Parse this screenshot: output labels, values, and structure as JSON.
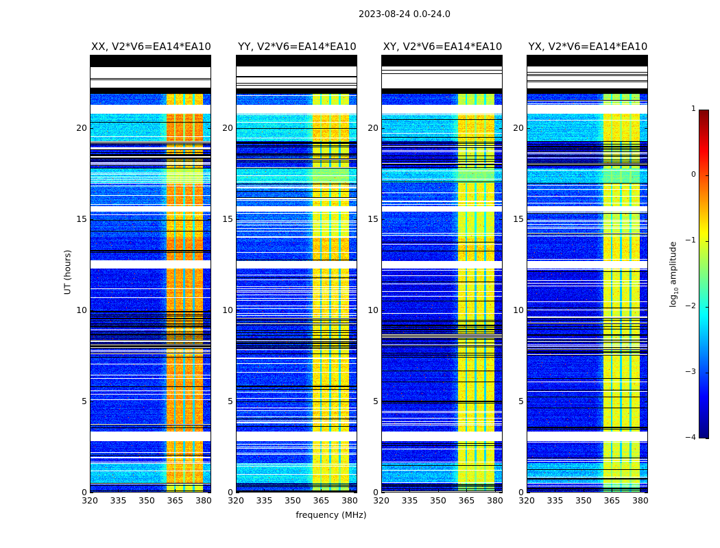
{
  "chart_data": {
    "type": "heatmap",
    "title": "2023-08-24 0.0-24.0",
    "xlabel": "frequency (MHz)",
    "ylabel": "UT (hours)",
    "xlim": [
      320,
      384
    ],
    "ylim": [
      0,
      24
    ],
    "xticks": [
      320,
      335,
      350,
      365,
      380
    ],
    "yticks": [
      0,
      5,
      10,
      15,
      20
    ],
    "panels": [
      {
        "title": "XX, V2*V6=EA14*EA10",
        "band_offset": 0.0,
        "quiet_offset": 0.0
      },
      {
        "title": "YY, V2*V6=EA14*EA10",
        "band_offset": -0.35,
        "quiet_offset": 0.1
      },
      {
        "title": "XY, V2*V6=EA14*EA10",
        "band_offset": -0.45,
        "quiet_offset": -0.1
      },
      {
        "title": "YX, V2*V6=EA14*EA10",
        "band_offset": -0.55,
        "quiet_offset": -0.1
      }
    ],
    "rfi_band_mhz": [
      360.5,
      380
    ],
    "rfi_band_gaps_mhz": [
      365,
      370,
      375
    ],
    "time_segments": [
      {
        "from": 23.4,
        "to": 24.0,
        "kind": "no-data"
      },
      {
        "from": 22.2,
        "to": 23.4,
        "kind": "flagged"
      },
      {
        "from": 21.9,
        "to": 22.2,
        "kind": "no-data"
      },
      {
        "from": 21.3,
        "to": 21.9,
        "kind": "data",
        "quiet": -3.0,
        "band": -0.7
      },
      {
        "from": 20.8,
        "to": 21.3,
        "kind": "flagged"
      },
      {
        "from": 19.3,
        "to": 20.8,
        "kind": "data",
        "quiet": -2.3,
        "band": -0.3
      },
      {
        "from": 17.8,
        "to": 19.3,
        "kind": "data-gappy",
        "quiet": -3.3,
        "band": -0.6
      },
      {
        "from": 17.0,
        "to": 17.8,
        "kind": "data",
        "quiet": -2.3,
        "band": -1.1
      },
      {
        "from": 15.7,
        "to": 17.0,
        "kind": "data",
        "quiet": -2.9,
        "band": -0.4
      },
      {
        "from": 15.4,
        "to": 15.7,
        "kind": "flagged"
      },
      {
        "from": 14.0,
        "to": 15.4,
        "kind": "data",
        "quiet": -3.0,
        "band": -0.6
      },
      {
        "from": 12.7,
        "to": 14.0,
        "kind": "data",
        "quiet": -3.2,
        "band": -0.3
      },
      {
        "from": 12.3,
        "to": 12.7,
        "kind": "flagged"
      },
      {
        "from": 9.7,
        "to": 12.3,
        "kind": "data",
        "quiet": -3.3,
        "band": -0.4
      },
      {
        "from": 7.5,
        "to": 9.7,
        "kind": "data-gappy",
        "quiet": -3.3,
        "band": -0.5
      },
      {
        "from": 3.3,
        "to": 7.5,
        "kind": "data",
        "quiet": -3.2,
        "band": -0.4
      },
      {
        "from": 2.8,
        "to": 3.3,
        "kind": "flagged"
      },
      {
        "from": 1.6,
        "to": 2.8,
        "kind": "data",
        "quiet": -3.2,
        "band": -0.5
      },
      {
        "from": 0.5,
        "to": 1.6,
        "kind": "data",
        "quiet": -2.4,
        "band": -0.5
      },
      {
        "from": 0.0,
        "to": 0.5,
        "kind": "data-gappy",
        "quiet": -3.2,
        "band": -1.0
      }
    ],
    "colorbar": {
      "label_prefix": "log",
      "label_sub": "10",
      "label_suffix": " amplitude",
      "range": [
        -4,
        1
      ],
      "ticks": [
        1,
        0,
        -1,
        -2,
        -3,
        -4
      ],
      "tick_labels": [
        "1",
        "0",
        "−1",
        "−2",
        "−3",
        "−4"
      ],
      "colormap": "jet"
    }
  }
}
